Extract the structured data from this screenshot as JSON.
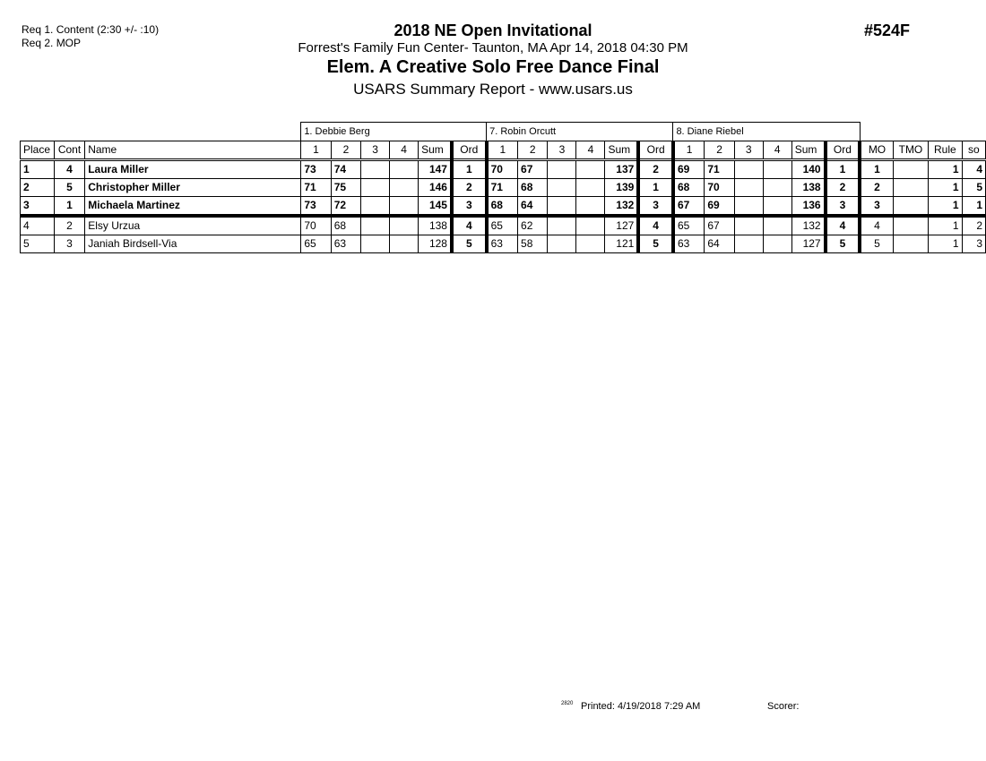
{
  "requirements": [
    "Req  1.  Content (2:30 +/- :10)",
    "Req  2.  MOP"
  ],
  "header": {
    "event": "2018 NE Open Invitational",
    "location": "Forrest's Family Fun Center- Taunton, MA  Apr 14, 2018  04:30 PM",
    "title": "Elem. A Creative Solo Free Dance Final",
    "subtitle": "USARS Summary Report - www.usars.us",
    "code": "#524F"
  },
  "table": {
    "judges": [
      "1.  Debbie  Berg",
      "7.  Robin Orcutt",
      "8.  Diane Riebel"
    ],
    "columns": {
      "place": "Place",
      "cont": "Cont",
      "name": "Name",
      "marks": [
        "1",
        "2",
        "3",
        "4"
      ],
      "sum": "Sum",
      "ord": "Ord",
      "mo": "MO",
      "tmo": "TMO",
      "rule": "Rule",
      "so": "so"
    },
    "rows": [
      {
        "place": "1",
        "cont": "4",
        "name": "Laura Miller",
        "bold": true,
        "judges": [
          {
            "marks": [
              "73",
              "74",
              "",
              ""
            ],
            "sum": "147",
            "ord": "1"
          },
          {
            "marks": [
              "70",
              "67",
              "",
              ""
            ],
            "sum": "137",
            "ord": "2"
          },
          {
            "marks": [
              "69",
              "71",
              "",
              ""
            ],
            "sum": "140",
            "ord": "1"
          }
        ],
        "mo": "1",
        "tmo": "",
        "rule": "1",
        "so": "4"
      },
      {
        "place": "2",
        "cont": "5",
        "name": "Christopher Miller",
        "bold": true,
        "judges": [
          {
            "marks": [
              "71",
              "75",
              "",
              ""
            ],
            "sum": "146",
            "ord": "2"
          },
          {
            "marks": [
              "71",
              "68",
              "",
              ""
            ],
            "sum": "139",
            "ord": "1"
          },
          {
            "marks": [
              "68",
              "70",
              "",
              ""
            ],
            "sum": "138",
            "ord": "2"
          }
        ],
        "mo": "2",
        "tmo": "",
        "rule": "1",
        "so": "5"
      },
      {
        "place": "3",
        "cont": "1",
        "name": "Michaela Martinez",
        "bold": true,
        "judges": [
          {
            "marks": [
              "73",
              "72",
              "",
              ""
            ],
            "sum": "145",
            "ord": "3"
          },
          {
            "marks": [
              "68",
              "64",
              "",
              ""
            ],
            "sum": "132",
            "ord": "3"
          },
          {
            "marks": [
              "67",
              "69",
              "",
              ""
            ],
            "sum": "136",
            "ord": "3"
          }
        ],
        "mo": "3",
        "tmo": "",
        "rule": "1",
        "so": "1"
      },
      {
        "place": "4",
        "cont": "2",
        "name": "Elsy Urzua",
        "bold": false,
        "judges": [
          {
            "marks": [
              "70",
              "68",
              "",
              ""
            ],
            "sum": "138",
            "ord": "4"
          },
          {
            "marks": [
              "65",
              "62",
              "",
              ""
            ],
            "sum": "127",
            "ord": "4"
          },
          {
            "marks": [
              "65",
              "67",
              "",
              ""
            ],
            "sum": "132",
            "ord": "4"
          }
        ],
        "mo": "4",
        "tmo": "",
        "rule": "1",
        "so": "2"
      },
      {
        "place": "5",
        "cont": "3",
        "name": "Janiah Birdsell-Via",
        "bold": false,
        "judges": [
          {
            "marks": [
              "65",
              "63",
              "",
              ""
            ],
            "sum": "128",
            "ord": "5"
          },
          {
            "marks": [
              "63",
              "58",
              "",
              ""
            ],
            "sum": "121",
            "ord": "5"
          },
          {
            "marks": [
              "63",
              "64",
              "",
              ""
            ],
            "sum": "127",
            "ord": "5"
          }
        ],
        "mo": "5",
        "tmo": "",
        "rule": "1",
        "so": "3"
      }
    ]
  },
  "footer": {
    "code": "2820",
    "printed": "Printed:  4/19/2018  7:29 AM",
    "scorer": "Scorer:"
  }
}
